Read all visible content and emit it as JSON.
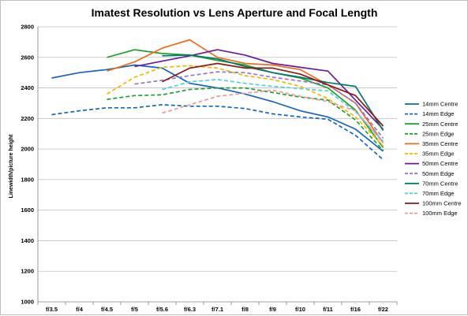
{
  "chart_data": {
    "type": "line",
    "title": "Imatest Resolution vs Lens Aperture and Focal Length",
    "xlabel": "",
    "ylabel": "Linewidth/picture height",
    "categories": [
      "f/3.5",
      "f/4",
      "f/4.5",
      "f/5",
      "f/5.6",
      "f/6.3",
      "f/7.1",
      "f/8",
      "f/9",
      "f/10",
      "f/11",
      "f/16",
      "f/22"
    ],
    "ylim": [
      1000,
      2800
    ],
    "yticks": [
      1000,
      1200,
      1400,
      1600,
      1800,
      2000,
      2200,
      2400,
      2600,
      2800
    ],
    "grid": true,
    "legend_position": "right",
    "series": [
      {
        "name": "14mm Centre",
        "color": "#1565C0",
        "dash": false,
        "values": [
          2465,
          2500,
          2520,
          2550,
          2530,
          2430,
          2400,
          2360,
          2310,
          2250,
          2210,
          2130,
          1985
        ]
      },
      {
        "name": "14mm Edge",
        "color": "#1565C0",
        "dash": true,
        "values": [
          2225,
          2250,
          2270,
          2270,
          2290,
          2280,
          2280,
          2265,
          2230,
          2210,
          2195,
          2090,
          1930
        ]
      },
      {
        "name": "25mm Centre",
        "color": "#1FA12E",
        "dash": false,
        "values": [
          null,
          null,
          2600,
          2650,
          2625,
          2615,
          2580,
          2550,
          2500,
          2465,
          2400,
          2255,
          2010
        ]
      },
      {
        "name": "25mm Edge",
        "color": "#1FA12E",
        "dash": true,
        "values": [
          null,
          null,
          2325,
          2350,
          2355,
          2390,
          2400,
          2400,
          2370,
          2340,
          2320,
          2190,
          1990
        ]
      },
      {
        "name": "35mm Centre",
        "color": "#EF6C1A",
        "dash": false,
        "values": [
          null,
          null,
          2510,
          2570,
          2660,
          2715,
          2600,
          2560,
          2550,
          2520,
          2420,
          2300,
          2040
        ]
      },
      {
        "name": "35mm Edge",
        "color": "#F5B800",
        "dash": true,
        "values": [
          null,
          null,
          2360,
          2470,
          2535,
          2545,
          2530,
          2480,
          2455,
          2410,
          2330,
          2210,
          2020
        ]
      },
      {
        "name": "50mm Centre",
        "color": "#6A1B9A",
        "dash": false,
        "values": [
          null,
          null,
          null,
          2540,
          2575,
          2610,
          2650,
          2615,
          2560,
          2535,
          2510,
          2320,
          2130
        ]
      },
      {
        "name": "50mm Edge",
        "color": "#9575CD",
        "dash": true,
        "values": [
          null,
          null,
          null,
          2425,
          2450,
          2480,
          2505,
          2500,
          2470,
          2445,
          2420,
          2300,
          2070
        ]
      },
      {
        "name": "70mm Centre",
        "color": "#00796B",
        "dash": false,
        "values": [
          null,
          null,
          null,
          null,
          2610,
          2615,
          2590,
          2540,
          2500,
          2470,
          2435,
          2410,
          2120
        ]
      },
      {
        "name": "70mm Edge",
        "color": "#4DD0E1",
        "dash": true,
        "values": [
          null,
          null,
          null,
          null,
          2390,
          2440,
          2455,
          2430,
          2410,
          2395,
          2380,
          2245,
          2050
        ]
      },
      {
        "name": "100mm Centre",
        "color": "#8B1A1A",
        "dash": false,
        "values": [
          null,
          null,
          null,
          null,
          2440,
          2530,
          2560,
          2530,
          2530,
          2490,
          2420,
          2350,
          2150
        ]
      },
      {
        "name": "100mm Edge",
        "color": "#EF9A9A",
        "dash": true,
        "values": [
          null,
          null,
          null,
          null,
          2235,
          2290,
          2345,
          2365,
          2385,
          2345,
          2310,
          2250,
          2040
        ]
      }
    ]
  }
}
